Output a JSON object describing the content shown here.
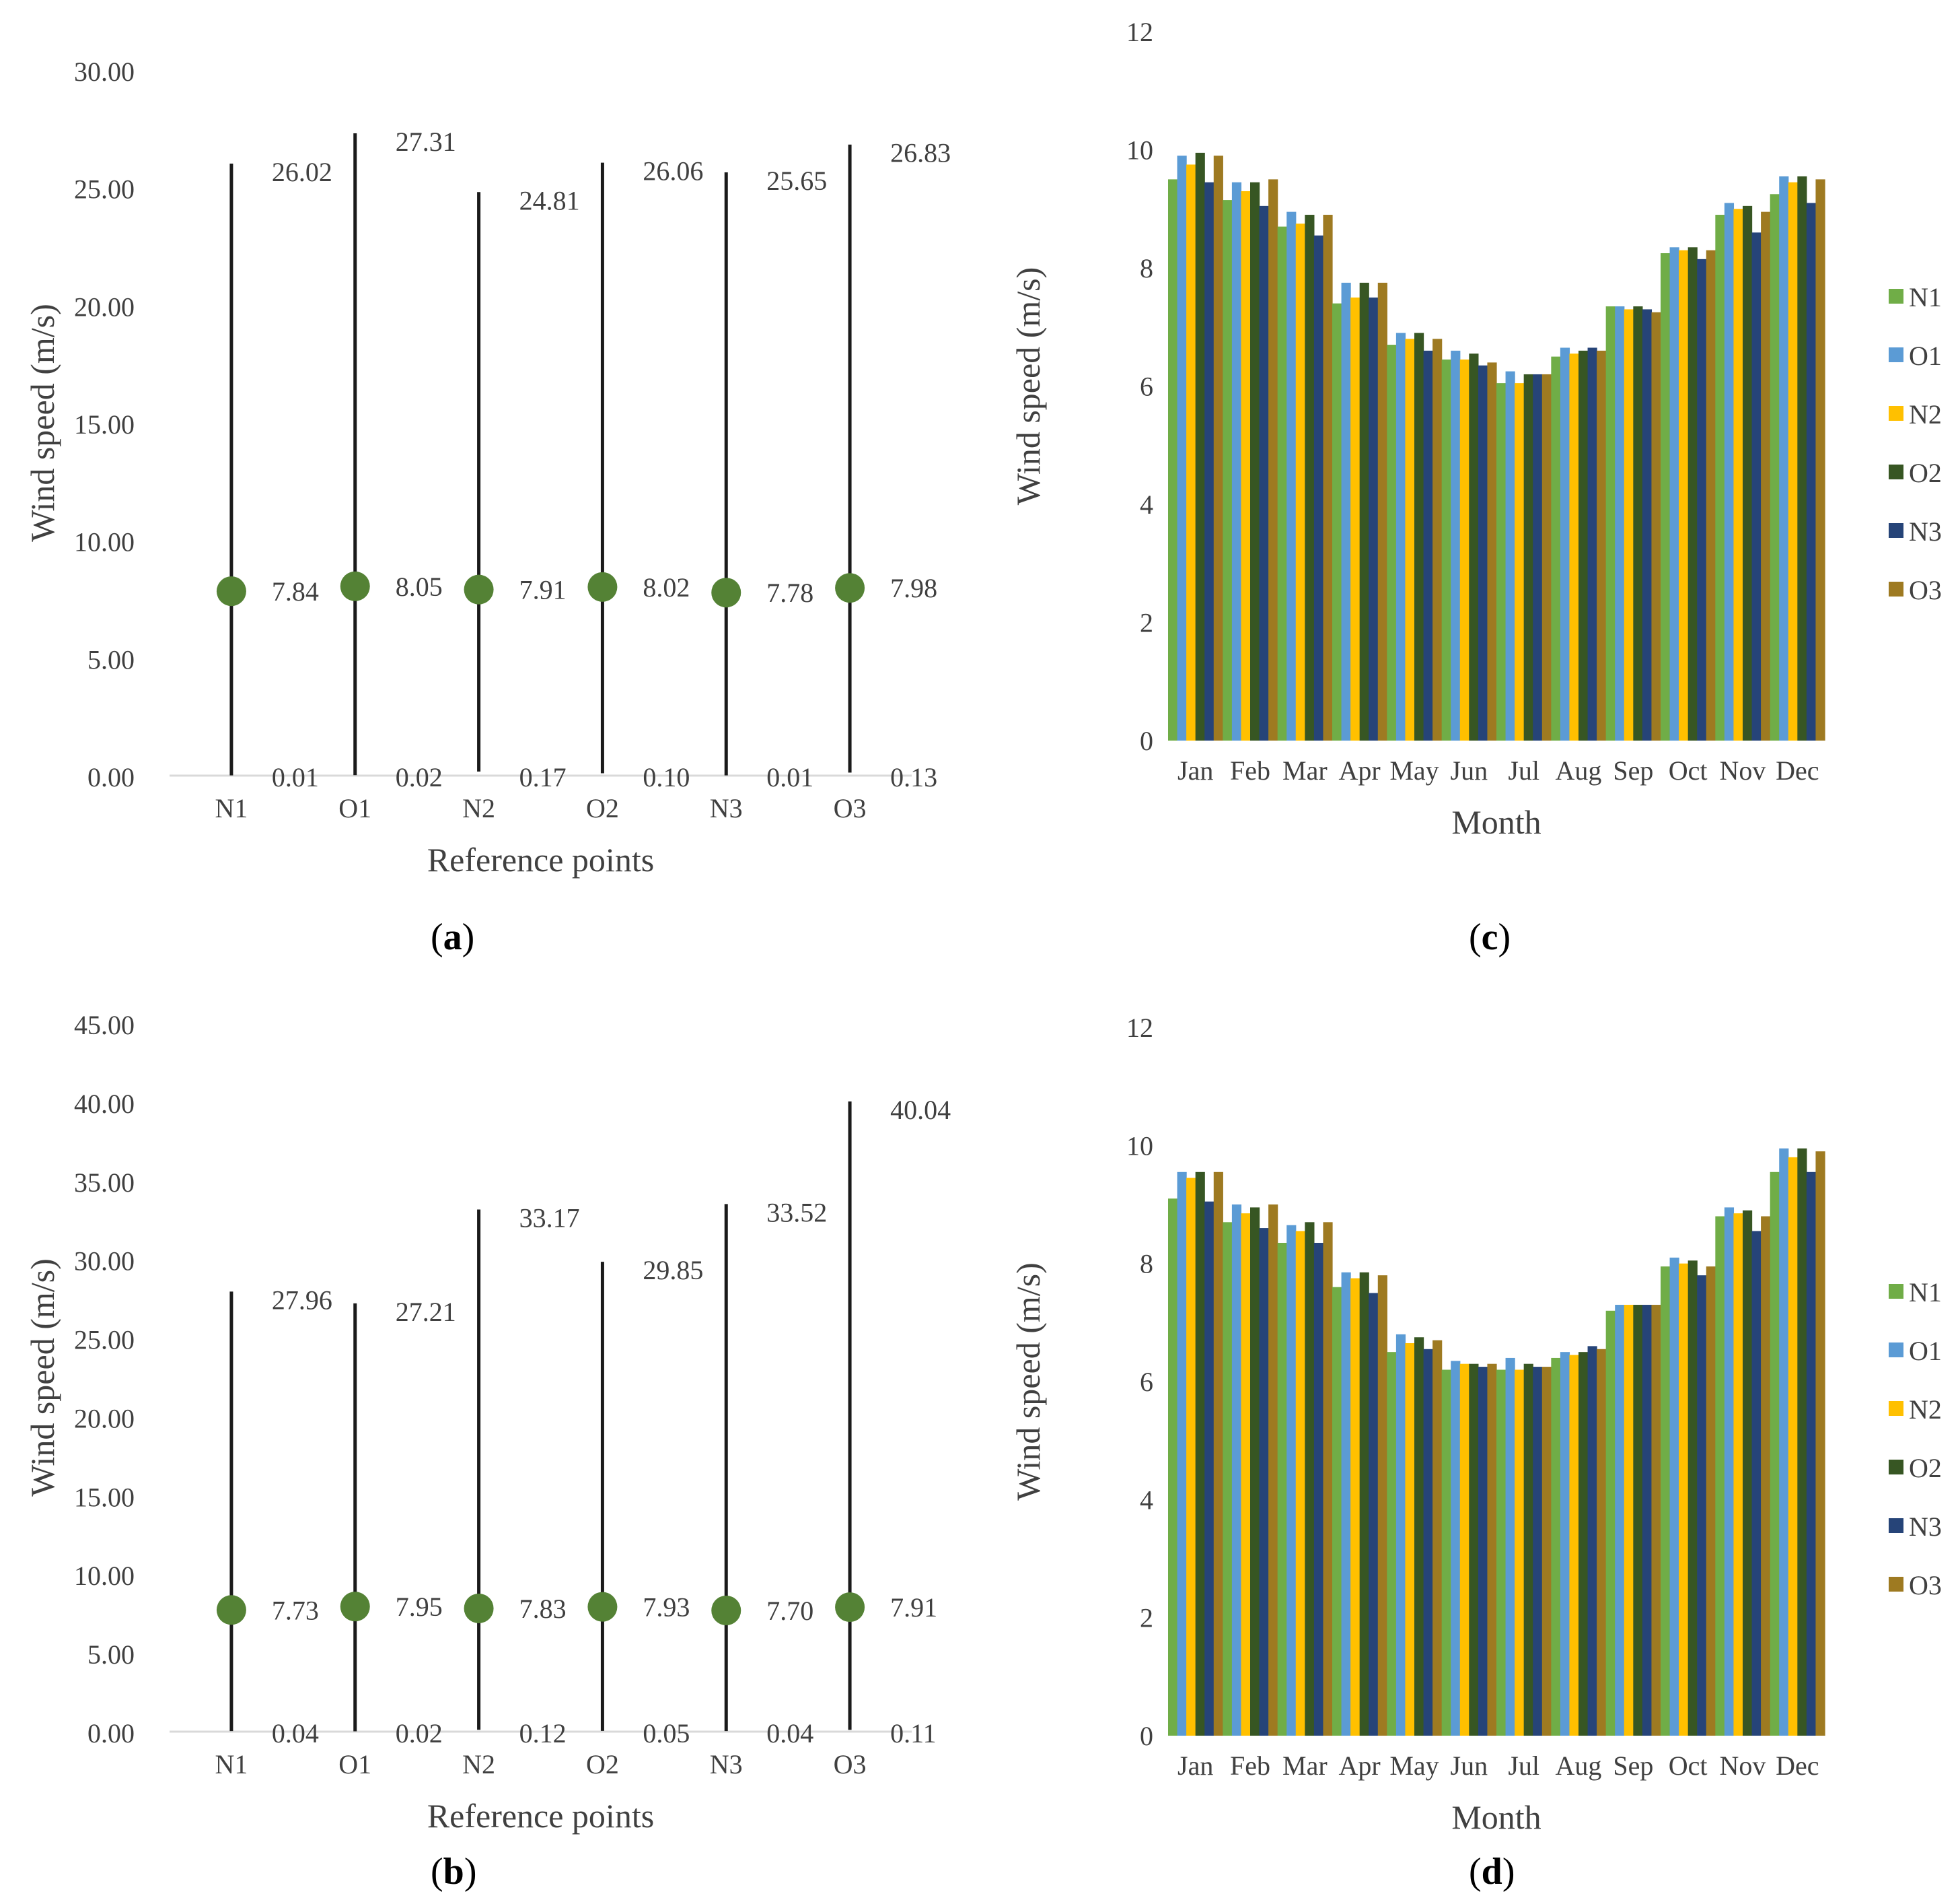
{
  "chart_data": [
    {
      "id": "a",
      "type": "scatter",
      "chart_subtype": "high-low-mean",
      "panel_label": "a",
      "xlabel": "Reference points",
      "ylabel": "Wind speed (m/s)",
      "ylim": [
        0,
        30
      ],
      "yticks": [
        "0.00",
        "5.00",
        "10.00",
        "15.00",
        "20.00",
        "25.00",
        "30.00"
      ],
      "categories": [
        "N1",
        "O1",
        "N2",
        "O2",
        "N3",
        "O3"
      ],
      "max": [
        26.02,
        27.31,
        24.81,
        26.06,
        25.65,
        26.83
      ],
      "mean": [
        7.84,
        8.05,
        7.91,
        8.02,
        7.78,
        7.98
      ],
      "min": [
        0.01,
        0.02,
        0.17,
        0.1,
        0.01,
        0.13
      ],
      "max_labels": [
        "26.02",
        "27.31",
        "24.81",
        "26.06",
        "25.65",
        "26.83"
      ],
      "mean_labels": [
        "7.84",
        "8.05",
        "7.91",
        "8.02",
        "7.78",
        "7.98"
      ],
      "min_labels": [
        "0.01",
        "0.02",
        "0.17",
        "0.10",
        "0.01",
        "0.13"
      ]
    },
    {
      "id": "b",
      "type": "scatter",
      "chart_subtype": "high-low-mean",
      "panel_label": "b",
      "xlabel": "Reference points",
      "ylabel": "Wind speed (m/s)",
      "ylim": [
        0,
        45
      ],
      "yticks": [
        "0.00",
        "5.00",
        "10.00",
        "15.00",
        "20.00",
        "25.00",
        "30.00",
        "35.00",
        "40.00",
        "45.00"
      ],
      "categories": [
        "N1",
        "O1",
        "N2",
        "O2",
        "N3",
        "O3"
      ],
      "max": [
        27.96,
        27.21,
        33.17,
        29.85,
        33.52,
        40.04
      ],
      "mean": [
        7.73,
        7.95,
        7.83,
        7.93,
        7.7,
        7.91
      ],
      "min": [
        0.04,
        0.02,
        0.12,
        0.05,
        0.04,
        0.11
      ],
      "max_labels": [
        "27.96",
        "27.21",
        "33.17",
        "29.85",
        "33.52",
        "40.04"
      ],
      "mean_labels": [
        "7.73",
        "7.95",
        "7.83",
        "7.93",
        "7.70",
        "7.91"
      ],
      "min_labels": [
        "0.04",
        "0.02",
        "0.12",
        "0.05",
        "0.04",
        "0.11"
      ]
    },
    {
      "id": "c",
      "type": "bar",
      "panel_label": "c",
      "xlabel": "Month",
      "ylabel": "Wind speed (m/s)",
      "ylim": [
        0,
        12
      ],
      "yticks": [
        "0",
        "2",
        "4",
        "6",
        "8",
        "10",
        "12"
      ],
      "categories": [
        "Jan",
        "Feb",
        "Mar",
        "Apr",
        "May",
        "Jun",
        "Jul",
        "Aug",
        "Sep",
        "Oct",
        "Nov",
        "Dec"
      ],
      "legend_position": "right",
      "series": [
        {
          "name": "N1",
          "color": "#70ad47",
          "values": [
            9.5,
            9.15,
            8.7,
            7.4,
            6.7,
            6.45,
            6.05,
            6.5,
            7.35,
            8.25,
            8.9,
            9.25
          ]
        },
        {
          "name": "O1",
          "color": "#5b9bd5",
          "values": [
            9.9,
            9.45,
            8.95,
            7.75,
            6.9,
            6.6,
            6.25,
            6.65,
            7.35,
            8.35,
            9.1,
            9.55
          ]
        },
        {
          "name": "N2",
          "color": "#ffc000",
          "values": [
            9.75,
            9.3,
            8.75,
            7.5,
            6.8,
            6.45,
            6.05,
            6.55,
            7.3,
            8.3,
            9.0,
            9.45
          ]
        },
        {
          "name": "O2",
          "color": "#375623",
          "values": [
            9.95,
            9.45,
            8.9,
            7.75,
            6.9,
            6.55,
            6.2,
            6.6,
            7.35,
            8.35,
            9.05,
            9.55
          ]
        },
        {
          "name": "N3",
          "color": "#264478",
          "values": [
            9.45,
            9.05,
            8.55,
            7.5,
            6.6,
            6.35,
            6.2,
            6.65,
            7.3,
            8.15,
            8.6,
            9.1
          ]
        },
        {
          "name": "O3",
          "color": "#9e7a21",
          "values": [
            9.9,
            9.5,
            8.9,
            7.75,
            6.8,
            6.4,
            6.2,
            6.6,
            7.25,
            8.3,
            8.95,
            9.5
          ]
        }
      ]
    },
    {
      "id": "d",
      "type": "bar",
      "panel_label": "d",
      "xlabel": "Month",
      "ylabel": "Wind speed (m/s)",
      "ylim": [
        0,
        12
      ],
      "yticks": [
        "0",
        "2",
        "4",
        "6",
        "8",
        "10",
        "12"
      ],
      "categories": [
        "Jan",
        "Feb",
        "Mar",
        "Apr",
        "May",
        "Jun",
        "Jul",
        "Aug",
        "Sep",
        "Oct",
        "Nov",
        "Dec"
      ],
      "legend_position": "right",
      "series": [
        {
          "name": "N1",
          "color": "#70ad47",
          "values": [
            9.1,
            8.7,
            8.35,
            7.6,
            6.5,
            6.2,
            6.2,
            6.4,
            7.2,
            7.95,
            8.8,
            9.55
          ]
        },
        {
          "name": "O1",
          "color": "#5b9bd5",
          "values": [
            9.55,
            9.0,
            8.65,
            7.85,
            6.8,
            6.35,
            6.4,
            6.5,
            7.3,
            8.1,
            8.95,
            9.95
          ]
        },
        {
          "name": "N2",
          "color": "#ffc000",
          "values": [
            9.45,
            8.85,
            8.55,
            7.75,
            6.65,
            6.3,
            6.2,
            6.45,
            7.3,
            8.0,
            8.85,
            9.8
          ]
        },
        {
          "name": "O2",
          "color": "#375623",
          "values": [
            9.55,
            8.95,
            8.7,
            7.85,
            6.75,
            6.3,
            6.3,
            6.5,
            7.3,
            8.05,
            8.9,
            9.95
          ]
        },
        {
          "name": "N3",
          "color": "#264478",
          "values": [
            9.05,
            8.6,
            8.35,
            7.5,
            6.55,
            6.25,
            6.25,
            6.6,
            7.3,
            7.8,
            8.55,
            9.55
          ]
        },
        {
          "name": "O3",
          "color": "#9e7a21",
          "values": [
            9.55,
            9.0,
            8.7,
            7.8,
            6.7,
            6.3,
            6.25,
            6.55,
            7.3,
            7.95,
            8.8,
            9.9
          ]
        }
      ]
    }
  ]
}
